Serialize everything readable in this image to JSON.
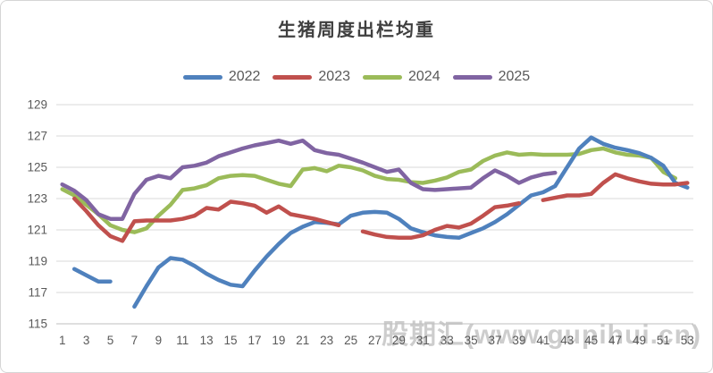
{
  "page": {
    "background": "#ffffff",
    "border_color": "#d5d5d5"
  },
  "chart_data": {
    "type": "line",
    "title": "生猪周度出栏均重",
    "watermark": "股期汇(www.gupihui.cn)",
    "grid": true,
    "legend_position": "top",
    "x_range": [
      1,
      53
    ],
    "ylim": [
      115,
      129
    ],
    "x_ticks": [
      1,
      3,
      5,
      7,
      9,
      11,
      13,
      15,
      17,
      19,
      21,
      23,
      25,
      27,
      29,
      31,
      33,
      35,
      37,
      39,
      41,
      43,
      45,
      47,
      49,
      51,
      53
    ],
    "y_ticks": [
      129,
      127,
      125,
      123,
      121,
      119,
      117,
      115
    ],
    "x": [
      1,
      2,
      3,
      4,
      5,
      6,
      7,
      8,
      9,
      10,
      11,
      12,
      13,
      14,
      15,
      16,
      17,
      18,
      19,
      20,
      21,
      22,
      23,
      24,
      25,
      26,
      27,
      28,
      29,
      30,
      31,
      32,
      33,
      34,
      35,
      36,
      37,
      38,
      39,
      40,
      41,
      42,
      43,
      44,
      45,
      46,
      47,
      48,
      49,
      50,
      51,
      52,
      53
    ],
    "axis_text_color": "#595959",
    "gridline_color": "#d9d9d9",
    "series": [
      {
        "name": "2022",
        "color": "#4F81BD",
        "values": [
          null,
          118.5,
          118.1,
          117.7,
          117.7,
          null,
          116.1,
          117.4,
          118.6,
          119.2,
          119.1,
          118.7,
          118.2,
          117.8,
          117.5,
          117.4,
          118.4,
          119.3,
          120.1,
          120.8,
          121.2,
          121.5,
          121.45,
          121.35,
          121.9,
          122.1,
          122.15,
          122.1,
          121.7,
          121.1,
          120.85,
          120.65,
          120.55,
          120.5,
          120.8,
          121.1,
          121.5,
          122.0,
          122.6,
          123.2,
          123.4,
          123.8,
          125.0,
          126.2,
          126.9,
          126.5,
          126.25,
          126.1,
          125.9,
          125.6,
          125.1,
          124.0,
          123.7
        ]
      },
      {
        "name": "2023",
        "color": "#C0504D",
        "values": [
          null,
          123.0,
          122.2,
          121.3,
          120.6,
          120.3,
          121.55,
          121.6,
          121.6,
          121.6,
          121.7,
          121.9,
          122.4,
          122.3,
          122.8,
          122.7,
          122.55,
          122.1,
          122.5,
          122.0,
          121.85,
          121.7,
          121.5,
          121.3,
          null,
          120.9,
          120.7,
          120.55,
          120.5,
          120.5,
          120.65,
          121.0,
          121.25,
          121.15,
          121.4,
          121.9,
          122.45,
          122.55,
          122.7,
          null,
          122.9,
          123.05,
          123.2,
          123.2,
          123.3,
          124.0,
          124.55,
          124.3,
          124.1,
          123.95,
          123.9,
          123.9,
          124.0
        ]
      },
      {
        "name": "2024",
        "color": "#9BBB59",
        "values": [
          123.6,
          123.2,
          122.6,
          122.0,
          121.3,
          121.0,
          120.85,
          121.1,
          121.9,
          122.6,
          123.55,
          123.65,
          123.85,
          124.3,
          124.45,
          124.5,
          124.45,
          124.2,
          123.95,
          123.8,
          124.85,
          124.95,
          124.75,
          125.1,
          125.0,
          124.8,
          124.45,
          124.25,
          124.2,
          124.05,
          124.0,
          124.15,
          124.35,
          124.7,
          124.85,
          125.4,
          125.75,
          125.95,
          125.8,
          125.85,
          125.8,
          125.8,
          125.8,
          125.85,
          126.1,
          126.2,
          125.95,
          125.8,
          125.75,
          125.6,
          124.7,
          124.3,
          null
        ]
      },
      {
        "name": "2025",
        "color": "#8064A2",
        "values": [
          123.9,
          123.5,
          122.9,
          122.0,
          121.7,
          121.7,
          123.3,
          124.2,
          124.45,
          124.3,
          125.0,
          125.1,
          125.3,
          125.7,
          125.95,
          126.2,
          126.4,
          126.55,
          126.7,
          126.5,
          126.7,
          126.1,
          125.9,
          125.8,
          125.55,
          125.3,
          125.0,
          124.7,
          124.85,
          124.0,
          123.6,
          123.55,
          123.6,
          123.65,
          123.7,
          124.3,
          124.8,
          124.45,
          124.0,
          124.35,
          124.55,
          124.65,
          null,
          null,
          null,
          null,
          null,
          null,
          null,
          null,
          null,
          null,
          null
        ]
      }
    ]
  }
}
